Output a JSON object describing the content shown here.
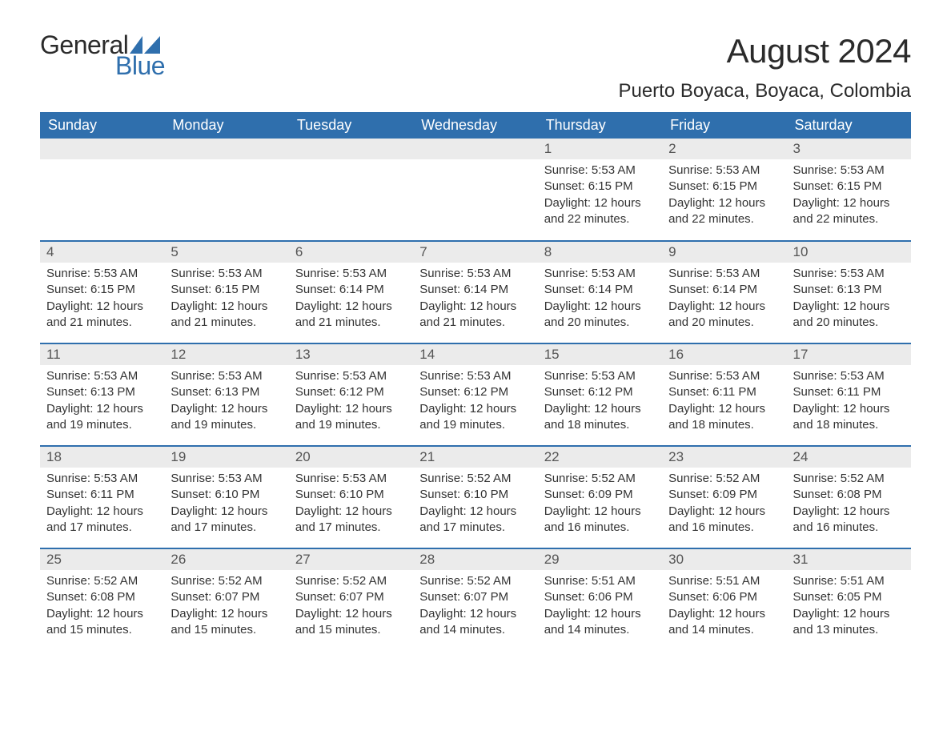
{
  "logo": {
    "text1": "General",
    "text2": "Blue",
    "shape_color": "#2f6fad"
  },
  "title": "August 2024",
  "location": "Puerto Boyaca, Boyaca, Colombia",
  "colors": {
    "header_bg": "#2f6fad",
    "header_text": "#ffffff",
    "daynum_bg": "#ebebeb",
    "daynum_text": "#555555",
    "body_text": "#333333",
    "row_sep": "#2f6fad",
    "page_bg": "#ffffff"
  },
  "fonts": {
    "title_size": 42,
    "location_size": 24,
    "weekday_size": 18,
    "daynum_size": 17,
    "body_size": 15
  },
  "weekdays": [
    "Sunday",
    "Monday",
    "Tuesday",
    "Wednesday",
    "Thursday",
    "Friday",
    "Saturday"
  ],
  "weeks": [
    [
      null,
      null,
      null,
      null,
      {
        "d": "1",
        "sr": "5:53 AM",
        "ss": "6:15 PM",
        "dl": "12 hours and 22 minutes."
      },
      {
        "d": "2",
        "sr": "5:53 AM",
        "ss": "6:15 PM",
        "dl": "12 hours and 22 minutes."
      },
      {
        "d": "3",
        "sr": "5:53 AM",
        "ss": "6:15 PM",
        "dl": "12 hours and 22 minutes."
      }
    ],
    [
      {
        "d": "4",
        "sr": "5:53 AM",
        "ss": "6:15 PM",
        "dl": "12 hours and 21 minutes."
      },
      {
        "d": "5",
        "sr": "5:53 AM",
        "ss": "6:15 PM",
        "dl": "12 hours and 21 minutes."
      },
      {
        "d": "6",
        "sr": "5:53 AM",
        "ss": "6:14 PM",
        "dl": "12 hours and 21 minutes."
      },
      {
        "d": "7",
        "sr": "5:53 AM",
        "ss": "6:14 PM",
        "dl": "12 hours and 21 minutes."
      },
      {
        "d": "8",
        "sr": "5:53 AM",
        "ss": "6:14 PM",
        "dl": "12 hours and 20 minutes."
      },
      {
        "d": "9",
        "sr": "5:53 AM",
        "ss": "6:14 PM",
        "dl": "12 hours and 20 minutes."
      },
      {
        "d": "10",
        "sr": "5:53 AM",
        "ss": "6:13 PM",
        "dl": "12 hours and 20 minutes."
      }
    ],
    [
      {
        "d": "11",
        "sr": "5:53 AM",
        "ss": "6:13 PM",
        "dl": "12 hours and 19 minutes."
      },
      {
        "d": "12",
        "sr": "5:53 AM",
        "ss": "6:13 PM",
        "dl": "12 hours and 19 minutes."
      },
      {
        "d": "13",
        "sr": "5:53 AM",
        "ss": "6:12 PM",
        "dl": "12 hours and 19 minutes."
      },
      {
        "d": "14",
        "sr": "5:53 AM",
        "ss": "6:12 PM",
        "dl": "12 hours and 19 minutes."
      },
      {
        "d": "15",
        "sr": "5:53 AM",
        "ss": "6:12 PM",
        "dl": "12 hours and 18 minutes."
      },
      {
        "d": "16",
        "sr": "5:53 AM",
        "ss": "6:11 PM",
        "dl": "12 hours and 18 minutes."
      },
      {
        "d": "17",
        "sr": "5:53 AM",
        "ss": "6:11 PM",
        "dl": "12 hours and 18 minutes."
      }
    ],
    [
      {
        "d": "18",
        "sr": "5:53 AM",
        "ss": "6:11 PM",
        "dl": "12 hours and 17 minutes."
      },
      {
        "d": "19",
        "sr": "5:53 AM",
        "ss": "6:10 PM",
        "dl": "12 hours and 17 minutes."
      },
      {
        "d": "20",
        "sr": "5:53 AM",
        "ss": "6:10 PM",
        "dl": "12 hours and 17 minutes."
      },
      {
        "d": "21",
        "sr": "5:52 AM",
        "ss": "6:10 PM",
        "dl": "12 hours and 17 minutes."
      },
      {
        "d": "22",
        "sr": "5:52 AM",
        "ss": "6:09 PM",
        "dl": "12 hours and 16 minutes."
      },
      {
        "d": "23",
        "sr": "5:52 AM",
        "ss": "6:09 PM",
        "dl": "12 hours and 16 minutes."
      },
      {
        "d": "24",
        "sr": "5:52 AM",
        "ss": "6:08 PM",
        "dl": "12 hours and 16 minutes."
      }
    ],
    [
      {
        "d": "25",
        "sr": "5:52 AM",
        "ss": "6:08 PM",
        "dl": "12 hours and 15 minutes."
      },
      {
        "d": "26",
        "sr": "5:52 AM",
        "ss": "6:07 PM",
        "dl": "12 hours and 15 minutes."
      },
      {
        "d": "27",
        "sr": "5:52 AM",
        "ss": "6:07 PM",
        "dl": "12 hours and 15 minutes."
      },
      {
        "d": "28",
        "sr": "5:52 AM",
        "ss": "6:07 PM",
        "dl": "12 hours and 14 minutes."
      },
      {
        "d": "29",
        "sr": "5:51 AM",
        "ss": "6:06 PM",
        "dl": "12 hours and 14 minutes."
      },
      {
        "d": "30",
        "sr": "5:51 AM",
        "ss": "6:06 PM",
        "dl": "12 hours and 14 minutes."
      },
      {
        "d": "31",
        "sr": "5:51 AM",
        "ss": "6:05 PM",
        "dl": "12 hours and 13 minutes."
      }
    ]
  ],
  "labels": {
    "sunrise": "Sunrise: ",
    "sunset": "Sunset: ",
    "daylight": "Daylight: "
  }
}
